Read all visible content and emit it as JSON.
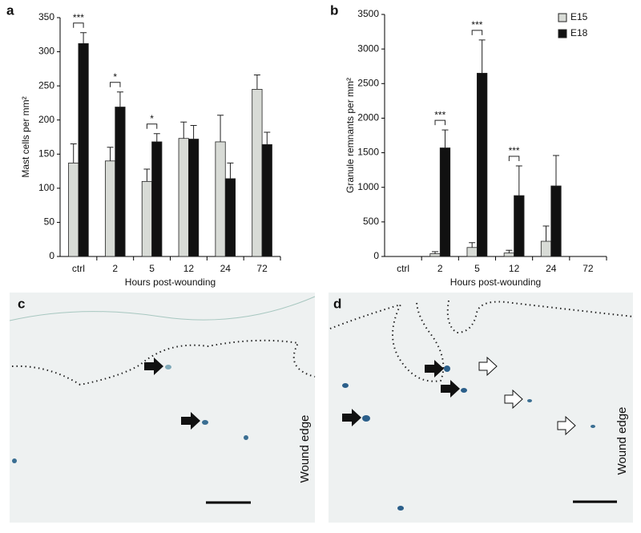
{
  "chart_data": [
    {
      "type": "bar",
      "panel": "a",
      "ylabel": "Mast cells per mm²",
      "xlabel": "Hours post-wounding",
      "categories": [
        "ctrl",
        "2",
        "5",
        "12",
        "24",
        "72"
      ],
      "series": [
        {
          "name": "E15",
          "color": "#d8dbd6",
          "values": [
            137,
            140,
            110,
            173,
            168,
            245
          ],
          "errors": [
            28,
            20,
            18,
            24,
            39,
            21
          ]
        },
        {
          "name": "E18",
          "color": "#111111",
          "values": [
            312,
            219,
            168,
            172,
            114,
            164
          ],
          "errors": [
            16,
            22,
            12,
            20,
            23,
            18
          ]
        }
      ],
      "annotations": [
        {
          "text": "***",
          "category": "ctrl"
        },
        {
          "text": "*",
          "category": "2"
        },
        {
          "text": "*",
          "category": "5"
        }
      ],
      "ylim": [
        0,
        350
      ],
      "yticks": [
        0,
        50,
        100,
        150,
        200,
        250,
        300,
        350
      ]
    },
    {
      "type": "bar",
      "panel": "b",
      "ylabel": "Granule remnants per mm²",
      "xlabel": "Hours post-wounding",
      "categories": [
        "ctrl",
        "2",
        "5",
        "12",
        "24",
        "72"
      ],
      "series": [
        {
          "name": "E15",
          "color": "#d8dbd6",
          "values": [
            null,
            40,
            130,
            50,
            220,
            null
          ],
          "errors": [
            null,
            30,
            70,
            40,
            220,
            null
          ]
        },
        {
          "name": "E18",
          "color": "#111111",
          "values": [
            null,
            1570,
            2650,
            880,
            1020,
            null
          ],
          "errors": [
            null,
            260,
            480,
            430,
            440,
            null
          ]
        }
      ],
      "annotations": [
        {
          "text": "***",
          "category": "2"
        },
        {
          "text": "***",
          "category": "5"
        },
        {
          "text": "***",
          "category": "12"
        }
      ],
      "ylim": [
        0,
        3500
      ],
      "yticks": [
        0,
        500,
        1000,
        1500,
        2000,
        2500,
        3000,
        3500
      ],
      "legend": "upper right"
    }
  ],
  "panels": [
    {
      "label": "c",
      "side_label": "Wound edge"
    },
    {
      "label": "d",
      "side_label": "Wound edge"
    }
  ]
}
